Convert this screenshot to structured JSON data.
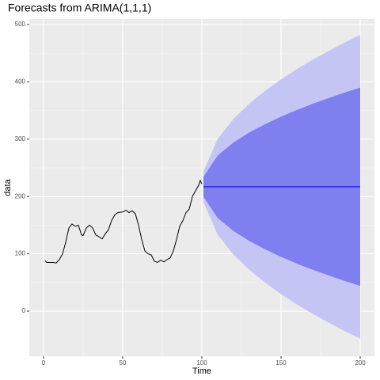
{
  "chart_data": {
    "type": "line",
    "title": "Forecasts from ARIMA(1,1,1)",
    "xlabel": "Time",
    "ylabel": "data",
    "xlim": [
      -9,
      209
    ],
    "ylim": [
      -78.7,
      509.7
    ],
    "xticks": [
      0,
      50,
      100,
      150,
      200
    ],
    "yticks": [
      0,
      100,
      200,
      300,
      400,
      500
    ],
    "grid": true,
    "series": [
      {
        "color": "#000000",
        "x": [
          1,
          2,
          4,
          6,
          8,
          10,
          12,
          14,
          16,
          18,
          20,
          22,
          24,
          25,
          27,
          29,
          31,
          33,
          35,
          37,
          39,
          41,
          43,
          45,
          47,
          50,
          52,
          54,
          56,
          58,
          60,
          62,
          64,
          66,
          68,
          70,
          72,
          74,
          76,
          78,
          80,
          82,
          84,
          86,
          88,
          90,
          92,
          94,
          96,
          98,
          99,
          100
        ],
        "values": [
          88,
          85,
          85,
          85,
          84,
          90,
          100,
          120,
          145,
          152,
          148,
          150,
          133,
          132,
          145,
          150,
          145,
          133,
          130,
          126,
          135,
          142,
          158,
          168,
          172,
          173,
          176,
          172,
          175,
          170,
          150,
          125,
          105,
          100,
          98,
          87,
          85,
          89,
          86,
          90,
          93,
          105,
          125,
          148,
          158,
          172,
          178,
          200,
          210,
          220,
          228,
          222
        ]
      }
    ],
    "forecast": {
      "x": [
        101,
        110,
        120,
        130,
        140,
        150,
        160,
        170,
        180,
        190,
        200
      ],
      "mean": [
        217,
        217,
        217,
        217,
        217,
        217,
        217,
        217,
        217,
        217,
        217
      ],
      "mean_color": "#0000cc",
      "hi95": [
        243.5,
        300.8,
        335.5,
        362.2,
        384.5,
        404.4,
        422.4,
        438.8,
        453.9,
        468.5,
        482
      ],
      "lo95": [
        190.5,
        133.2,
        98.5,
        71.8,
        49.5,
        29.6,
        11.6,
        -4.8,
        -19.9,
        -34.5,
        -48
      ],
      "color95": "#c5c5f5",
      "hi80": [
        234.3,
        271.7,
        294.3,
        311.8,
        326.3,
        339.3,
        351.1,
        361.8,
        371.7,
        381.2,
        390
      ],
      "lo80": [
        199.7,
        162.3,
        139.7,
        122.2,
        107.7,
        94.7,
        82.9,
        72.2,
        62.3,
        52.8,
        44
      ],
      "color80": "#7f7ff0"
    }
  }
}
